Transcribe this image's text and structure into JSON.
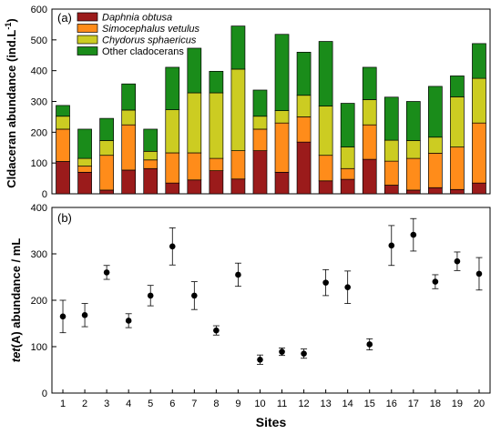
{
  "chart_data": [
    {
      "type": "bar",
      "stacked": true,
      "panel_label": "(a)",
      "ylabel_prefix": "Cldaceran abundance (ind.L",
      "ylabel_sup": "-1",
      "ylabel_suffix": ")",
      "xlabel": "",
      "ylim": [
        0,
        600
      ],
      "yticks": [
        "0",
        "100",
        "200",
        "300",
        "400",
        "500",
        "600"
      ],
      "categories": [
        "1",
        "2",
        "3",
        "4",
        "5",
        "6",
        "7",
        "8",
        "9",
        "10",
        "11",
        "12",
        "13",
        "14",
        "15",
        "16",
        "17",
        "18",
        "19",
        "20"
      ],
      "legend_position": "top-left",
      "series": [
        {
          "name": "Daphnia obtusa",
          "italic": true,
          "color": "#9B1B1B",
          "values": [
            105,
            70,
            12,
            77,
            82,
            35,
            45,
            75,
            48,
            140,
            70,
            168,
            42,
            47,
            112,
            28,
            12,
            20,
            14,
            35
          ]
        },
        {
          "name": "Simocephalus vetulus",
          "italic": true,
          "color": "#FF8C1A",
          "values": [
            105,
            20,
            113,
            147,
            28,
            98,
            88,
            40,
            92,
            70,
            160,
            82,
            83,
            35,
            112,
            78,
            103,
            112,
            138,
            195
          ]
        },
        {
          "name": "Chydorus sphaericus",
          "italic": true,
          "color": "#CCCC22",
          "values": [
            42,
            25,
            48,
            48,
            28,
            140,
            195,
            213,
            265,
            42,
            40,
            70,
            160,
            70,
            82,
            68,
            58,
            52,
            163,
            145
          ]
        },
        {
          "name": "Other cladocerans",
          "italic": false,
          "color": "#1A8C1A",
          "values": [
            35,
            95,
            72,
            85,
            72,
            138,
            145,
            70,
            140,
            85,
            248,
            140,
            210,
            142,
            105,
            140,
            127,
            165,
            68,
            113
          ]
        }
      ]
    },
    {
      "type": "scatter",
      "panel_label": "(b)",
      "ylabel_italic": "tet",
      "ylabel_rest": "(A) abundance / mL",
      "xlabel": "Sites",
      "ylim": [
        0,
        400
      ],
      "yticks": [
        "0",
        "100",
        "200",
        "300",
        "400"
      ],
      "categories": [
        "1",
        "2",
        "3",
        "4",
        "5",
        "6",
        "7",
        "8",
        "9",
        "10",
        "11",
        "12",
        "13",
        "14",
        "15",
        "16",
        "17",
        "18",
        "19",
        "20"
      ],
      "values": [
        165,
        168,
        260,
        156,
        210,
        316,
        210,
        135,
        255,
        72,
        89,
        85,
        238,
        228,
        105,
        318,
        341,
        240,
        284,
        257
      ],
      "errors": [
        35,
        25,
        15,
        15,
        22,
        40,
        30,
        10,
        25,
        10,
        8,
        10,
        28,
        35,
        12,
        43,
        35,
        15,
        20,
        35
      ]
    }
  ]
}
